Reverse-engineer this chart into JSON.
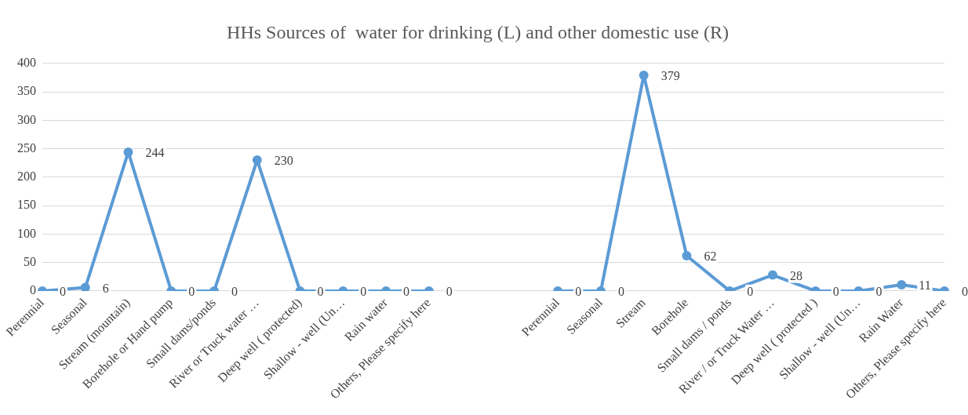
{
  "chart_data": {
    "type": "line",
    "title": "HHs Sources of  water for drinking (L) and other domestic use (R)",
    "categories": [
      "Perennial",
      "Seasonal",
      "Stream (mountain)",
      "Borehole or Hand pump",
      "Small dams/ponds",
      "River or Truck water …",
      "Deep well ( protected)",
      "Shallow - well (Un…",
      "Rain water",
      "Others, Please specify here",
      null,
      null,
      "Perennial",
      "Seasonal",
      "Stream",
      "Borehole",
      "Small dams / ponds",
      "River / or Truck Water …",
      "Deep well ( protected )",
      "Shallow - well (Un…",
      "Rain Water",
      "Others, Please specify here"
    ],
    "series": [
      {
        "color": "#5b9bd5",
        "values": [
          0,
          6,
          244,
          0,
          0,
          230,
          0,
          0,
          0,
          0,
          null,
          null,
          0,
          0,
          379,
          62,
          0,
          28,
          0,
          0,
          11,
          0
        ]
      }
    ],
    "ylim": [
      0,
      400
    ],
    "yticks": [
      0,
      50,
      100,
      150,
      200,
      250,
      300,
      350,
      400
    ],
    "grid": "y",
    "legend": false,
    "marker": "circle",
    "line_style": "solid",
    "data_labels": true
  }
}
